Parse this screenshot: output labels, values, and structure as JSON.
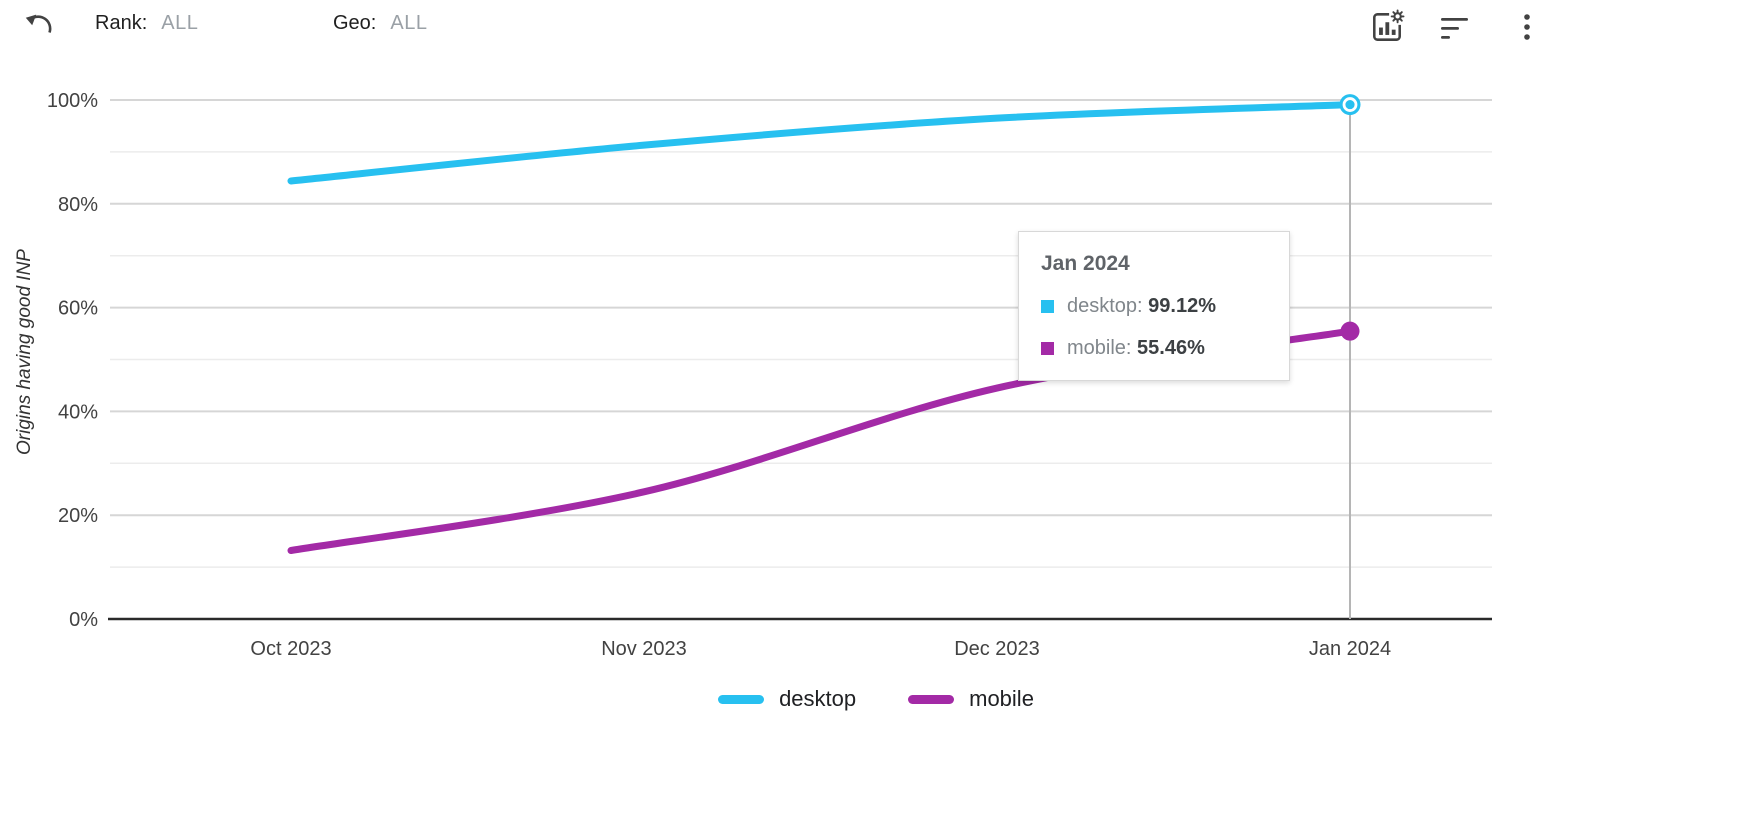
{
  "header": {
    "filters": [
      {
        "label": "Rank:",
        "value": "ALL"
      },
      {
        "label": "Geo:",
        "value": "ALL"
      }
    ],
    "actions": {
      "undo": "undo",
      "chart_settings": "chart-settings",
      "filter": "filter-sort",
      "more": "more-options"
    }
  },
  "chart_data": {
    "type": "line",
    "title": "",
    "xlabel": "",
    "ylabel": "Origins having good INP",
    "x": [
      "Oct 2023",
      "Nov 2023",
      "Dec 2023",
      "Jan 2024"
    ],
    "series": [
      {
        "name": "desktop",
        "color": "#27c0f0",
        "values": [
          84.4,
          91.3,
          96.5,
          99.12
        ],
        "endpoint_marker": "ring"
      },
      {
        "name": "mobile",
        "color": "#a32aa6",
        "values": [
          13.2,
          24.5,
          44.5,
          55.46
        ],
        "endpoint_marker": "dot"
      }
    ],
    "ylim": [
      0,
      100
    ],
    "yticks": [
      0,
      20,
      40,
      60,
      80,
      100
    ],
    "ytick_format": "percent",
    "grid_minor_step": 10,
    "grid": true,
    "legend_position": "bottom",
    "highlight_x": "Jan 2024"
  },
  "tooltip": {
    "title": "Jan 2024",
    "rows": [
      {
        "label": "desktop:",
        "value": "99.12%"
      },
      {
        "label": "mobile:",
        "value": "55.46%"
      }
    ]
  }
}
